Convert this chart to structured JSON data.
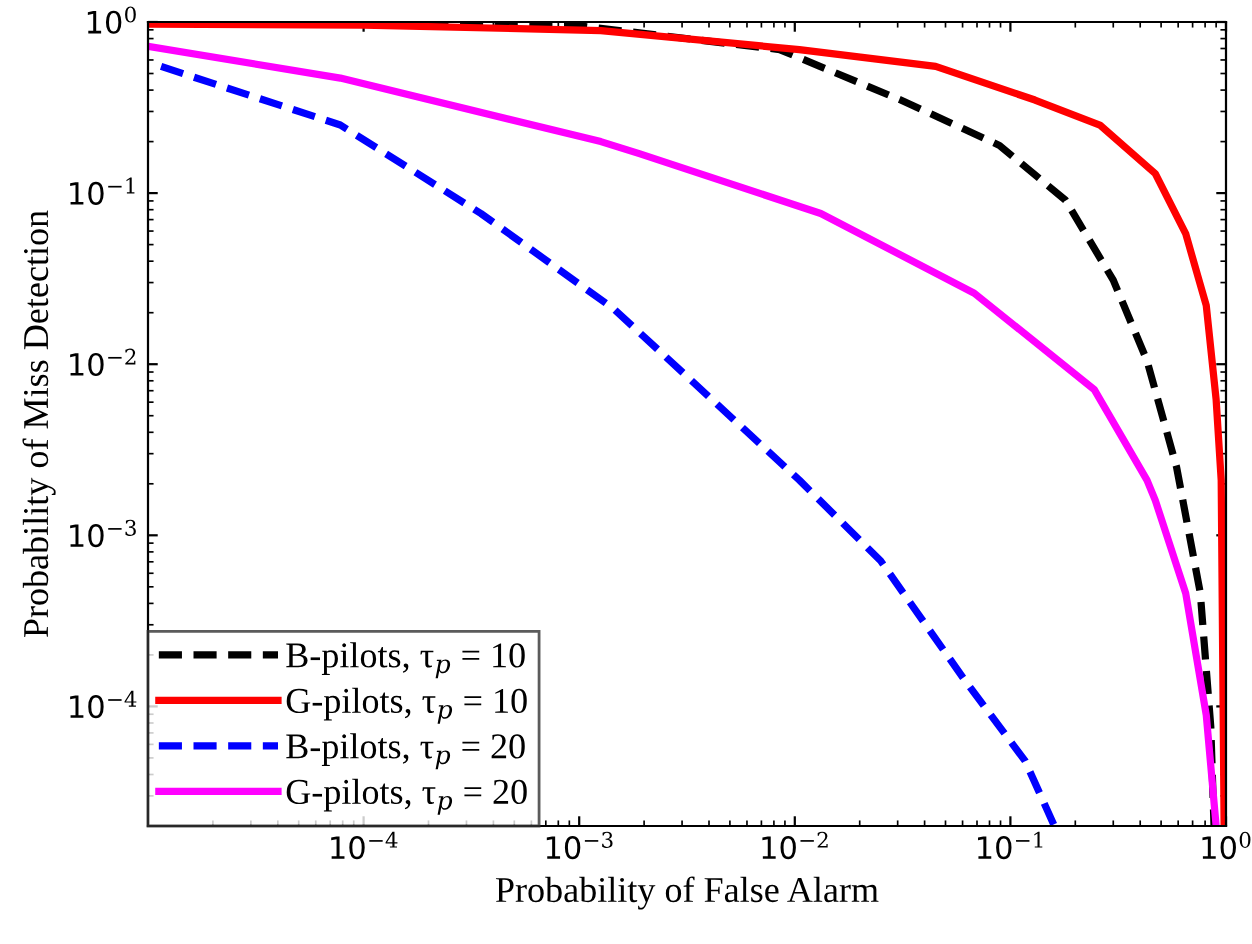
{
  "chart_data": {
    "type": "line",
    "xlabel": "Probability of False Alarm",
    "ylabel": "Probability of Miss Detection",
    "log": "xy",
    "grid": false,
    "legend": "bottom left",
    "xlim": [
      1e-05,
      1
    ],
    "ylim": [
      2e-05,
      1
    ],
    "xticks": [
      {
        "value": 0.0001,
        "label": "10$^{−4}$"
      },
      {
        "value": 0.001,
        "label": "10$^{−3}$"
      },
      {
        "value": 0.01,
        "label": "10$^{−2}$"
      },
      {
        "value": 0.1,
        "label": "10$^{−1}$"
      },
      {
        "value": 1,
        "label": "10$^{0}$"
      }
    ],
    "yticks": [
      {
        "value": 0.0001,
        "label": "10$^{−4}$"
      },
      {
        "value": 0.001,
        "label": "10$^{−3}$"
      },
      {
        "value": 0.01,
        "label": "10$^{−2}$"
      },
      {
        "value": 0.1,
        "label": "10$^{−1}$"
      },
      {
        "value": 1,
        "label": "10$^{0}$"
      }
    ],
    "series": [
      {
        "name": "B-pilots, τ$_{p}$ = 10",
        "color": "#000000",
        "line_style": "dashed",
        "x": [
          1e-05,
          0.001,
          0.0085,
          0.031,
          0.089,
          0.18,
          0.3,
          0.43,
          0.59,
          0.76,
          0.85,
          0.88
        ],
        "values": [
          0.99,
          0.95,
          0.69,
          0.35,
          0.19,
          0.091,
          0.031,
          0.0105,
          0.0025,
          0.00046,
          7.6e-05,
          2e-05
        ]
      },
      {
        "name": "G-pilots, τ$_{p}$ = 10",
        "color": "#ff0000",
        "line_style": "solid",
        "x": [
          1e-05,
          0.0001,
          0.00126,
          0.0105,
          0.045,
          0.13,
          0.26,
          0.47,
          0.65,
          0.81,
          0.9,
          0.95,
          0.98
        ],
        "values": [
          0.97,
          0.96,
          0.89,
          0.69,
          0.55,
          0.35,
          0.25,
          0.13,
          0.058,
          0.022,
          0.0062,
          0.0021,
          2e-05
        ]
      },
      {
        "name": "B-pilots, τ$_{p}$ = 20",
        "color": "#0000ff",
        "line_style": "dashed",
        "x": [
          1.15e-05,
          7.8e-05,
          0.00035,
          0.00145,
          0.0105,
          0.025,
          0.062,
          0.117,
          0.16
        ],
        "values": [
          0.55,
          0.25,
          0.076,
          0.021,
          0.0021,
          0.00071,
          0.00014,
          4.8e-05,
          2e-05
        ]
      },
      {
        "name": "G-pilots, τ$_{p}$ = 20",
        "color": "#ff00ff",
        "line_style": "solid",
        "x": [
          1e-05,
          7.8e-05,
          0.00126,
          0.0019,
          0.0132,
          0.068,
          0.245,
          0.43,
          0.47,
          0.65,
          0.81,
          0.9
        ],
        "values": [
          0.72,
          0.47,
          0.2,
          0.17,
          0.076,
          0.026,
          0.0071,
          0.0021,
          0.0016,
          0.00046,
          8.9e-05,
          2e-05
        ]
      }
    ]
  }
}
